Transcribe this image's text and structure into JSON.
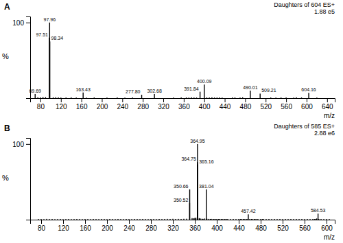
{
  "chart_data": [
    {
      "type": "bar",
      "title": "A",
      "annotation": [
        "Daughters of 604 ES+",
        "1.88 e5"
      ],
      "xlabel": "m/z",
      "ylabel": "%",
      "xlim": [
        60,
        655
      ],
      "xticks": [
        80,
        120,
        160,
        200,
        240,
        280,
        320,
        360,
        400,
        440,
        480,
        520,
        560,
        600,
        640
      ],
      "ylim": [
        0,
        108
      ],
      "yticks": [
        100
      ],
      "grid": false,
      "series": [
        {
          "color": "#000000",
          "x": [
            75,
            80,
            85,
            90,
            105,
            110,
            115,
            120,
            130,
            140,
            150,
            170,
            185,
            210,
            230,
            245,
            260,
            340,
            355,
            365,
            370,
            375,
            380,
            385,
            405,
            410,
            415,
            420,
            425,
            430,
            435,
            455,
            460,
            470,
            475,
            530,
            540,
            550,
            560,
            575,
            580,
            590,
            620
          ],
          "values": [
            1.2,
            1.0,
            1.5,
            1.3,
            1.0,
            1.2,
            1.0,
            0.8,
            0.9,
            1.1,
            0.8,
            0.7,
            0.9,
            0.8,
            1.0,
            0.7,
            0.9,
            0.8,
            1.0,
            0.9,
            0.8,
            1.1,
            0.9,
            0.8,
            1.0,
            0.9,
            1.1,
            0.8,
            0.9,
            1.0,
            0.8,
            0.9,
            1.0,
            0.8,
            1.1,
            0.9,
            0.8,
            1.0,
            0.9,
            0.8,
            1.1,
            0.9,
            0.8
          ]
        },
        {
          "color": "#000000",
          "x": [
            69.69,
            97.51,
            97.96,
            98.34,
            163.43,
            277.8,
            302.68,
            391.84,
            400.09,
            490.01,
            509.21,
            604.16
          ],
          "values": [
            5.5,
            80.0,
            100.0,
            75.0,
            7.5,
            4.5,
            5.5,
            8.5,
            18.0,
            10.0,
            6.0,
            7.0
          ],
          "labels": [
            "69.69",
            "97.51",
            "97.96",
            "98.34",
            "163.43",
            "277.80",
            "302.68",
            "391.84",
            "400.09",
            "490.01",
            "509.21",
            "604.16"
          ]
        }
      ]
    },
    {
      "type": "bar",
      "title": "B",
      "annotation": [
        "Daughters of 585 ES+",
        "2.88 e6"
      ],
      "xlabel": "m/z",
      "ylabel": "%",
      "xlim": [
        60,
        615
      ],
      "xticks": [
        80,
        120,
        160,
        200,
        240,
        280,
        320,
        360,
        400,
        440,
        480,
        520,
        560,
        600
      ],
      "ylim": [
        0,
        108
      ],
      "yticks": [
        100
      ],
      "grid": false,
      "series": [
        {
          "color": "#000000",
          "x": [
            75,
            80,
            85,
            90,
            95,
            100,
            105,
            110,
            115,
            120,
            125,
            130,
            135,
            140,
            145,
            150,
            155,
            160,
            165,
            170,
            175,
            180,
            185,
            190,
            195,
            200,
            205,
            210,
            215,
            220,
            225,
            230,
            235,
            240,
            245,
            250,
            255,
            260,
            265,
            270,
            275,
            280,
            285,
            290,
            295,
            300,
            305,
            310,
            315,
            320,
            325,
            330,
            335,
            340,
            345,
            355,
            358,
            360,
            362,
            368,
            370,
            373,
            375,
            378,
            382,
            385,
            388,
            390,
            393,
            395,
            398,
            400,
            403,
            405,
            408,
            410,
            413,
            415,
            418,
            420,
            425,
            430,
            435,
            440,
            443,
            445,
            448,
            450,
            453,
            455,
            460,
            463,
            465,
            468,
            470,
            473,
            475,
            480,
            483,
            485,
            490,
            495,
            500,
            505,
            510,
            515,
            520,
            525,
            530,
            535,
            540,
            545,
            550,
            555,
            560,
            565,
            570,
            575,
            578,
            580,
            582,
            586,
            590,
            595,
            600,
            605
          ],
          "values": [
            0.8,
            0.9,
            0.7,
            1.0,
            0.8,
            0.9,
            0.7,
            0.8,
            0.9,
            0.7,
            0.8,
            0.9,
            0.7,
            0.8,
            0.9,
            0.8,
            0.7,
            0.9,
            0.8,
            0.7,
            0.9,
            0.8,
            0.7,
            0.9,
            0.8,
            0.7,
            0.9,
            0.8,
            0.7,
            0.9,
            0.8,
            0.7,
            0.9,
            0.8,
            0.7,
            0.9,
            0.8,
            0.7,
            0.9,
            0.8,
            0.7,
            0.9,
            0.8,
            0.7,
            0.9,
            0.8,
            0.9,
            1.0,
            0.9,
            1.1,
            0.9,
            1.0,
            0.9,
            1.1,
            1.2,
            2.0,
            1.8,
            2.2,
            2.5,
            2.0,
            1.5,
            1.2,
            1.0,
            1.5,
            1.2,
            1.0,
            0.9,
            1.0,
            0.8,
            0.9,
            0.8,
            0.9,
            0.8,
            0.9,
            0.8,
            0.9,
            0.8,
            0.9,
            0.8,
            0.9,
            0.8,
            0.9,
            0.8,
            0.9,
            0.8,
            0.9,
            0.8,
            0.9,
            0.8,
            0.9,
            0.8,
            0.9,
            0.8,
            0.9,
            0.8,
            0.9,
            0.8,
            0.9,
            0.8,
            0.9,
            0.8,
            0.9,
            0.8,
            0.9,
            0.8,
            0.9,
            0.8,
            0.9,
            0.8,
            0.9,
            0.8,
            0.9,
            0.8,
            0.9,
            0.8,
            0.9,
            0.8,
            0.9,
            0.8,
            0.9,
            1.5,
            0.8,
            0.9,
            0.8,
            0.9,
            0.8
          ]
        },
        {
          "color": "#000000",
          "x": [
            350.52,
            350.66,
            364.75,
            364.95,
            365.16,
            381.04,
            457.42,
            584.53
          ],
          "values": [
            22.0,
            40.0,
            76.0,
            100.0,
            73.0,
            40.0,
            7.0,
            8.0
          ],
          "labels": [
            "350.52",
            "350.66",
            "364.75",
            "364.95",
            "365.16",
            "381.04",
            "457.42",
            "584.53"
          ]
        }
      ]
    }
  ]
}
